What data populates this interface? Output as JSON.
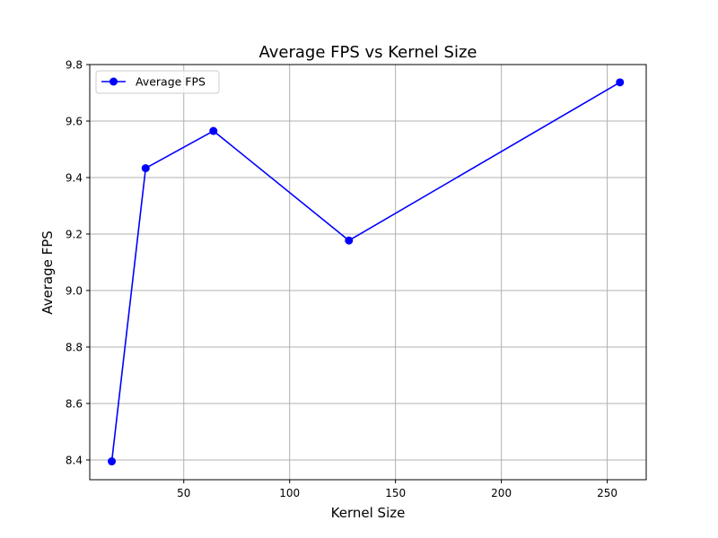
{
  "chart_data": {
    "type": "line",
    "title": "Average FPS vs Kernel Size",
    "xlabel": "Kernel Size",
    "ylabel": "Average FPS",
    "xlim": [
      5.6,
      268.4
    ],
    "ylim": [
      8.33,
      9.8
    ],
    "xticks": [
      50,
      100,
      150,
      200,
      250
    ],
    "yticks": [
      8.4,
      8.6,
      8.8,
      9.0,
      9.2,
      9.4,
      9.6,
      9.8
    ],
    "grid": true,
    "legend_position": "top-left",
    "series": [
      {
        "name": "Average FPS",
        "color": "#0000ff",
        "marker": "circle",
        "x": [
          16,
          32,
          64,
          128,
          256
        ],
        "y": [
          8.395,
          9.433,
          9.565,
          9.177,
          9.737
        ]
      }
    ]
  }
}
